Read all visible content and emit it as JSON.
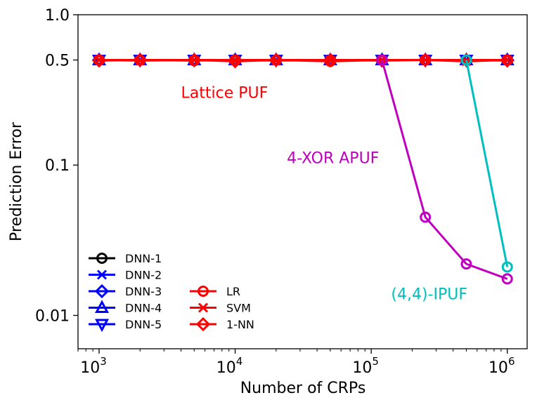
{
  "chart_data": {
    "type": "line",
    "title": "",
    "xlabel": "Number of CRPs",
    "ylabel": "Prediction Error",
    "xscale": "log",
    "yscale": "log",
    "xlim": [
      700,
      1400000
    ],
    "ylim": [
      0.006,
      1.0
    ],
    "x_ticks": [
      {
        "value": 1000,
        "base": "10",
        "exp": "3"
      },
      {
        "value": 10000,
        "base": "10",
        "exp": "4"
      },
      {
        "value": 100000,
        "base": "10",
        "exp": "5"
      },
      {
        "value": 1000000,
        "base": "10",
        "exp": "6"
      }
    ],
    "y_ticks": [
      {
        "value": 0.01,
        "label": "0.01"
      },
      {
        "value": 0.1,
        "label": "0.1"
      },
      {
        "value": 0.5,
        "label": "0.5"
      },
      {
        "value": 1.0,
        "label": "1.0"
      }
    ],
    "x": [
      1000,
      2000,
      5000,
      10000,
      20000,
      50000,
      120000,
      250000,
      500000,
      1000000
    ],
    "series": [
      {
        "name": "DNN-1",
        "color": "#000000",
        "marker": "circle",
        "values": [
          0.5,
          0.5,
          0.5,
          0.5,
          0.5,
          0.5,
          0.5,
          0.5,
          0.5,
          0.5
        ]
      },
      {
        "name": "DNN-2",
        "color": "#0000ff",
        "marker": "x",
        "values": [
          0.5,
          0.5,
          0.5,
          0.5,
          0.5,
          0.5,
          0.5,
          0.5,
          0.5,
          0.5
        ]
      },
      {
        "name": "DNN-3",
        "color": "#0000ff",
        "marker": "diamond",
        "values": [
          0.5,
          0.5,
          0.5,
          0.5,
          0.5,
          0.5,
          0.5,
          0.5,
          0.5,
          0.5
        ]
      },
      {
        "name": "DNN-4",
        "color": "#0000ff",
        "marker": "triangle-up",
        "values": [
          0.5,
          0.5,
          0.5,
          0.5,
          0.5,
          0.5,
          0.5,
          0.5,
          0.5,
          0.5
        ]
      },
      {
        "name": "DNN-5",
        "color": "#0000ff",
        "marker": "triangle-down",
        "values": [
          0.5,
          0.5,
          0.5,
          0.5,
          0.5,
          0.5,
          0.5,
          0.5,
          0.5,
          0.5
        ]
      },
      {
        "name": "LR",
        "color": "#ff0000",
        "marker": "circle",
        "values": [
          0.5,
          0.5,
          0.495,
          0.5,
          0.5,
          0.49,
          0.5,
          0.5,
          0.5,
          0.5
        ]
      },
      {
        "name": "SVM",
        "color": "#ff0000",
        "marker": "x",
        "values": [
          0.5,
          0.495,
          0.5,
          0.5,
          0.495,
          0.5,
          0.5,
          0.5,
          0.49,
          0.5
        ]
      },
      {
        "name": "1-NN",
        "color": "#ff0000",
        "marker": "diamond",
        "values": [
          0.495,
          0.5,
          0.5,
          0.49,
          0.5,
          0.5,
          0.495,
          0.5,
          0.5,
          0.495
        ]
      },
      {
        "name": "4-XOR APUF",
        "color": "#bf00bf",
        "marker": "circle",
        "in_legend": false,
        "x": [
          120000,
          250000,
          500000,
          1000000
        ],
        "values": [
          0.5,
          0.045,
          0.022,
          0.0175
        ]
      },
      {
        "name": "(4,4)-IPUF",
        "color": "#00bfbf",
        "marker": "circle",
        "in_legend": false,
        "x": [
          500000,
          1000000
        ],
        "values": [
          0.5,
          0.021
        ]
      }
    ],
    "annotations": [
      {
        "text": "Lattice PUF",
        "color": "#ff0000",
        "x": 4000,
        "y": 0.28
      },
      {
        "text": "4-XOR APUF",
        "color": "#bf00bf",
        "x": 24000,
        "y": 0.103
      },
      {
        "text": "(4,4)-IPUF",
        "color": "#00bfbf",
        "x": 140000,
        "y": 0.0128
      }
    ],
    "legend": {
      "location": "lower-left",
      "columns": [
        [
          "DNN-1",
          "DNN-2",
          "DNN-3",
          "DNN-4",
          "DNN-5"
        ],
        [
          "LR",
          "SVM",
          "1-NN"
        ]
      ]
    }
  }
}
